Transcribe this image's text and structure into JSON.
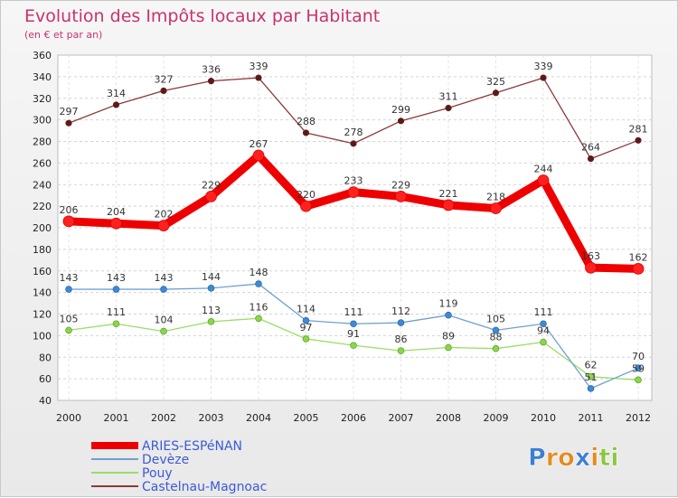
{
  "chart_data": {
    "type": "line",
    "title": "Evolution des Impôts locaux par Habitant",
    "subtitle": "(en € et par an)",
    "x": [
      "2000",
      "2001",
      "2002",
      "2003",
      "2004",
      "2005",
      "2006",
      "2007",
      "2008",
      "2009",
      "2010",
      "2011",
      "2012"
    ],
    "ylim": [
      40,
      360
    ],
    "yticks": [
      40,
      60,
      80,
      100,
      120,
      140,
      160,
      180,
      200,
      220,
      240,
      260,
      280,
      300,
      320,
      340,
      360
    ],
    "grid": true,
    "legend_position": "bottom-left",
    "series": [
      {
        "name": "Castelnau-Magnoac",
        "color": "#8b3a3a",
        "values": [
          297,
          314,
          327,
          336,
          339,
          288,
          278,
          299,
          311,
          325,
          339,
          264,
          281
        ]
      },
      {
        "name": "ARIES-ESPéNAN",
        "color": "#ee0000",
        "values": [
          206,
          204,
          202,
          229,
          267,
          220,
          233,
          229,
          221,
          218,
          244,
          163,
          162
        ]
      },
      {
        "name": "Devèze",
        "color": "#6fa0d0",
        "values": [
          143,
          143,
          143,
          144,
          148,
          114,
          111,
          112,
          119,
          105,
          111,
          51,
          70
        ]
      },
      {
        "name": "Pouy",
        "color": "#99dd66",
        "values": [
          105,
          111,
          104,
          113,
          116,
          97,
          91,
          86,
          89,
          88,
          94,
          62,
          59
        ]
      }
    ],
    "legend_order": [
      "ARIES-ESPéNAN",
      "Devèze",
      "Pouy",
      "Castelnau-Magnoac"
    ]
  },
  "logo": {
    "text": "Proxiti",
    "letters": [
      "P",
      "r",
      "o",
      "x",
      "i",
      "t",
      "i"
    ],
    "colors": [
      "#3b7fd0",
      "#e58a1f",
      "#e58a1f",
      "#3b7fd0",
      "#e58a1f",
      "#8cc63f",
      "#8cc63f"
    ]
  }
}
